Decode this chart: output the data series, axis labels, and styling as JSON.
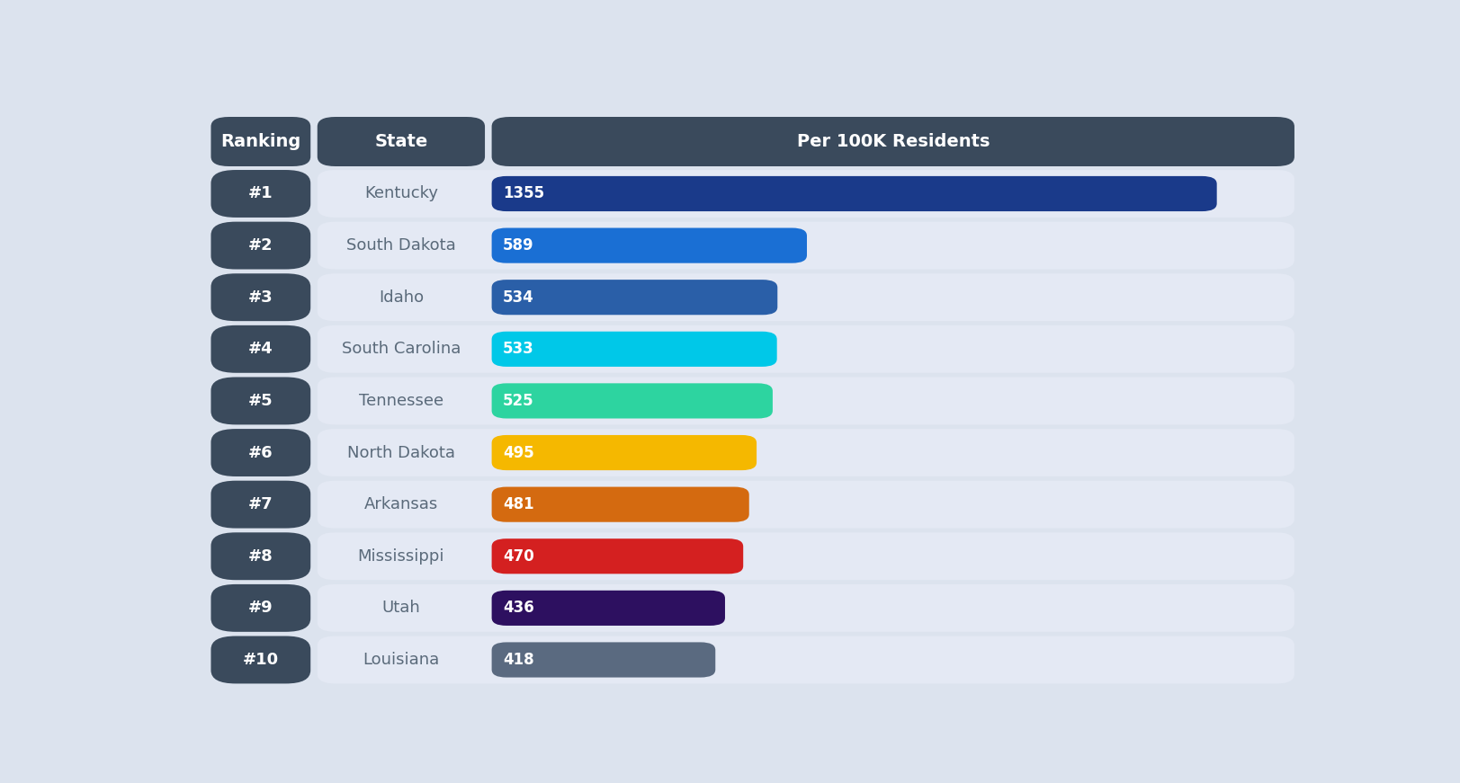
{
  "rankings": [
    "#1",
    "#2",
    "#3",
    "#4",
    "#5",
    "#6",
    "#7",
    "#8",
    "#9",
    "#10"
  ],
  "states": [
    "Kentucky",
    "South Dakota",
    "Idaho",
    "South Carolina",
    "Tennessee",
    "North Dakota",
    "Arkansas",
    "Mississippi",
    "Utah",
    "Louisiana"
  ],
  "values": [
    1355,
    589,
    534,
    533,
    525,
    495,
    481,
    470,
    436,
    418
  ],
  "bar_colors": [
    "#1a3a8a",
    "#1a6fd4",
    "#2a5fa8",
    "#00c8e8",
    "#2dd4a0",
    "#f5b800",
    "#d46a10",
    "#d42020",
    "#2d1060",
    "#5a6a80"
  ],
  "max_value": 1500,
  "header_bg": "#3a4a5c",
  "ranking_bg": "#3a4a5c",
  "row_bg": "#e4e9f4",
  "outer_bg": "#dce3ee",
  "header_text": "#ffffff",
  "ranking_text": "#ffffff",
  "state_text": "#5a6a7a",
  "value_text": "#ffffff",
  "col_ranking_label": "Ranking",
  "col_state_label": "State",
  "col_value_label": "Per 100K Residents",
  "header_fontsize": 14,
  "label_fontsize": 13,
  "value_fontsize": 12
}
